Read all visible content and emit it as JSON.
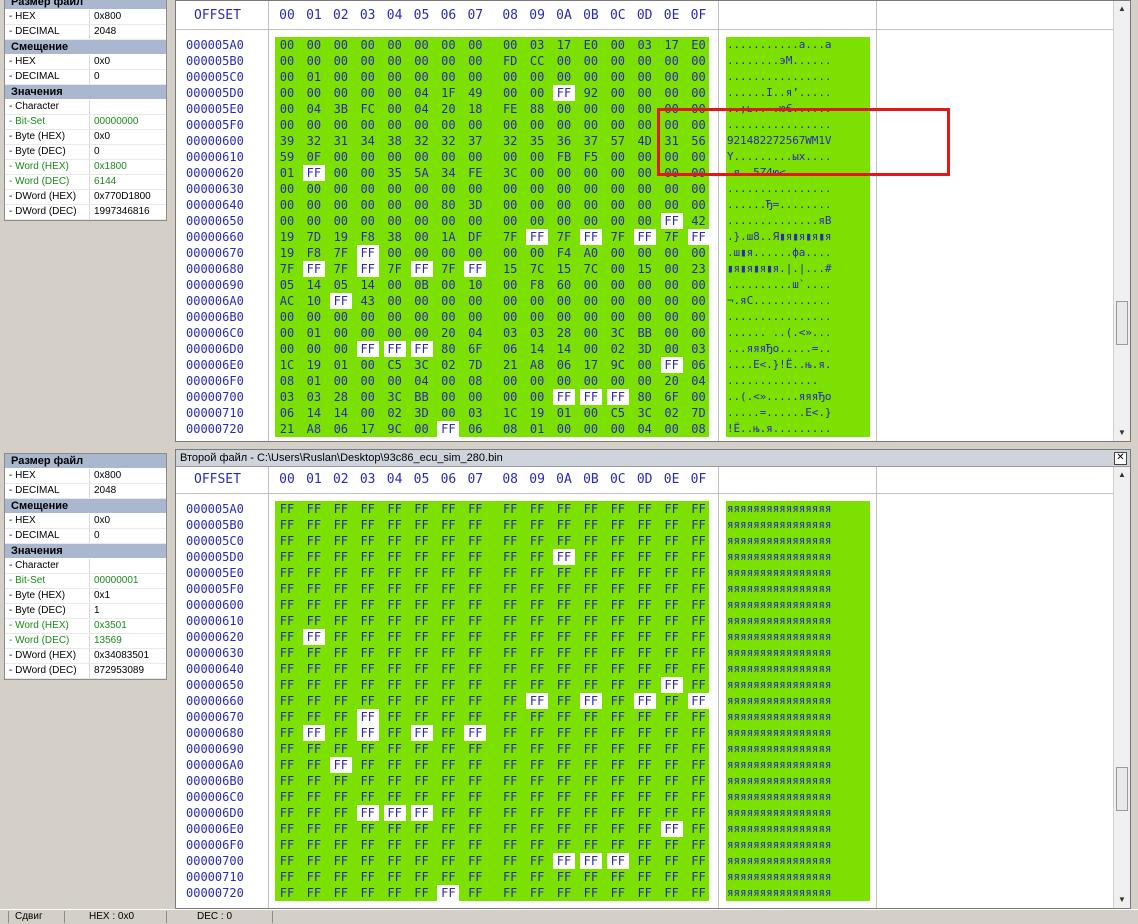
{
  "top_props": {
    "sections": [
      {
        "title": "Размер файл",
        "rows": [
          {
            "k": "- HEX",
            "v": "0x800"
          },
          {
            "k": "- DECIMAL",
            "v": "2048"
          }
        ]
      },
      {
        "title": "Смещение",
        "rows": [
          {
            "k": "- HEX",
            "v": "0x0"
          },
          {
            "k": "- DECIMAL",
            "v": "0"
          }
        ]
      },
      {
        "title": "Значения",
        "rows": [
          {
            "k": "- Character",
            "v": ""
          },
          {
            "k": "- Bit-Set",
            "v": "00000000",
            "g": true
          },
          {
            "k": "- Byte (HEX)",
            "v": "0x0"
          },
          {
            "k": "- Byte (DEC)",
            "v": "0"
          },
          {
            "k": "- Word (HEX)",
            "v": "0x1800",
            "g": true
          },
          {
            "k": "- Word (DEC)",
            "v": "6144",
            "g": true
          },
          {
            "k": "- DWord (HEX)",
            "v": "0x770D1800"
          },
          {
            "k": "- DWord (DEC)",
            "v": "1997346816"
          }
        ]
      }
    ]
  },
  "bottom_props": {
    "sections": [
      {
        "title": "Размер файл",
        "rows": [
          {
            "k": "- HEX",
            "v": "0x800"
          },
          {
            "k": "- DECIMAL",
            "v": "2048"
          }
        ]
      },
      {
        "title": "Смещение",
        "rows": [
          {
            "k": "- HEX",
            "v": "0x0"
          },
          {
            "k": "- DECIMAL",
            "v": "0"
          }
        ]
      },
      {
        "title": "Значения",
        "rows": [
          {
            "k": "- Character",
            "v": ""
          },
          {
            "k": "- Bit-Set",
            "v": "00000001",
            "g": true
          },
          {
            "k": "- Byte (HEX)",
            "v": "0x1"
          },
          {
            "k": "- Byte (DEC)",
            "v": "1"
          },
          {
            "k": "- Word (HEX)",
            "v": "0x3501",
            "g": true
          },
          {
            "k": "- Word (DEC)",
            "v": "13569",
            "g": true
          },
          {
            "k": "- DWord (HEX)",
            "v": "0x34083501"
          },
          {
            "k": "- DWord (DEC)",
            "v": "872953089"
          }
        ]
      }
    ]
  },
  "columns": [
    "00",
    "01",
    "02",
    "03",
    "04",
    "05",
    "06",
    "07",
    "08",
    "09",
    "0A",
    "0B",
    "0C",
    "0D",
    "0E",
    "0F"
  ],
  "offset_label": "OFFSET",
  "offsets": [
    "000005A0",
    "000005B0",
    "000005C0",
    "000005D0",
    "000005E0",
    "000005F0",
    "00000600",
    "00000610",
    "00000620",
    "00000630",
    "00000640",
    "00000650",
    "00000660",
    "00000670",
    "00000680",
    "00000690",
    "000006A0",
    "000006B0",
    "000006C0",
    "000006D0",
    "000006E0",
    "000006F0",
    "00000700",
    "00000710",
    "00000720"
  ],
  "top_pane": {
    "rows": [
      "00 00 00 00 00 00 00 00 00 03 17 E0 00 03 17 E0",
      "00 00 00 00 00 00 00 00 FD CC 00 00 00 00 00 00",
      "00 01 00 00 00 00 00 00 00 00 00 00 00 00 00 00",
      "00 00 00 00 00 04 1F 49 00 00 FF 92 00 00 00 00",
      "00 04 3B FC 00 04 20 18 FE 88 00 00 00 00 00 00",
      "00 00 00 00 00 00 00 00 00 00 00 00 00 00 00 00",
      "39 32 31 34 38 32 32 37 32 35 36 37 57 4D 31 56",
      "59 0F 00 00 00 00 00 00 00 00 FB F5 00 00 00 00",
      "01 FF 00 00 35 5A 34 FE 3C 00 00 00 00 00 00 00",
      "00 00 00 00 00 00 00 00 00 00 00 00 00 00 00 00",
      "00 00 00 00 00 00 80 3D 00 00 00 00 00 00 00 00",
      "00 00 00 00 00 00 00 00 00 00 00 00 00 00 FF 42",
      "19 7D 19 F8 38 00 1A DF 7F FF 7F FF 7F FF 7F FF",
      "19 F8 7F FF 00 00 00 00 00 00 F4 A0 00 00 00 00",
      "7F FF 7F FF 7F FF 7F FF 15 7C 15 7C 00 15 00 23",
      "05 14 05 14 00 0B 00 10 00 F8 60 00 00 00 00 00",
      "AC 10 FF 43 00 00 00 00 00 00 00 00 00 00 00 00",
      "00 00 00 00 00 00 00 00 00 00 00 00 00 00 00 00",
      "00 01 00 00 00 00 20 04 03 03 28 00 3C BB 00 00",
      "00 00 00 FF FF FF 80 6F 06 14 14 00 02 3D 00 03",
      "1C 19 01 00 C5 3C 02 7D 21 A8 06 17 9C 00 FF 06",
      "08 01 00 00 00 04 00 08 00 00 00 00 00 00 20 04",
      "03 03 28 00 3C BB 00 00 00 00 FF FF FF 80 6F 00",
      "06 14 14 00 02 3D 00 03 1C 19 01 00 C5 3C 02 7D",
      "21 A8 06 17 9C 00 FF 06 08 01 00 00 00 04 00 08"
    ],
    "ascii": [
      "...........а...а",
      "........эМ......",
      "................",
      "......I..я’.....",
      "..;ь.. .ю€......",
      "................",
      "921482272567WM1V",
      "Y.........ых....",
      ".я..5Z4ю<.......",
      "................",
      "......Ђ=........",
      "..............яB",
      ".}.ш8..Я▮я▮я▮я▮я",
      ".ш▮я......фа....",
      "▮я▮я▮я▮я.|.|...#",
      "..........ш`....",
      "¬.яC............",
      "................",
      "...... ..(.<»...",
      "...яяяЂо.....=..",
      "....Е<.}!Ё..њ.я.",
      "..............  ",
      "..(.<».....яяяЂо",
      ".....=......Е<.}",
      "!Ё..њ.я........."
    ]
  },
  "bottom_pane": {
    "title": "Второй файл - C:\\Users\\Ruslan\\Desktop\\93c86_ecu_sim_280.bin",
    "rows": [
      "FF FF FF FF FF FF FF FF FF FF FF FF FF FF FF FF",
      "FF FF FF FF FF FF FF FF FF FF FF FF FF FF FF FF",
      "FF FF FF FF FF FF FF FF FF FF FF FF FF FF FF FF",
      "FF FF FF FF FF FF FF FF FF FF FF FF FF FF FF FF",
      "FF FF FF FF FF FF FF FF FF FF FF FF FF FF FF FF",
      "FF FF FF FF FF FF FF FF FF FF FF FF FF FF FF FF",
      "FF FF FF FF FF FF FF FF FF FF FF FF FF FF FF FF",
      "FF FF FF FF FF FF FF FF FF FF FF FF FF FF FF FF",
      "FF FF FF FF FF FF FF FF FF FF FF FF FF FF FF FF",
      "FF FF FF FF FF FF FF FF FF FF FF FF FF FF FF FF",
      "FF FF FF FF FF FF FF FF FF FF FF FF FF FF FF FF",
      "FF FF FF FF FF FF FF FF FF FF FF FF FF FF FF FF",
      "FF FF FF FF FF FF FF FF FF FF FF FF FF FF FF FF",
      "FF FF FF FF FF FF FF FF FF FF FF FF FF FF FF FF",
      "FF FF FF FF FF FF FF FF FF FF FF FF FF FF FF FF",
      "FF FF FF FF FF FF FF FF FF FF FF FF FF FF FF FF",
      "FF FF FF FF FF FF FF FF FF FF FF FF FF FF FF FF",
      "FF FF FF FF FF FF FF FF FF FF FF FF FF FF FF FF",
      "FF FF FF FF FF FF FF FF FF FF FF FF FF FF FF FF",
      "FF FF FF FF FF FF FF FF FF FF FF FF FF FF FF FF",
      "FF FF FF FF FF FF FF FF FF FF FF FF FF FF FF FF",
      "FF FF FF FF FF FF FF FF FF FF FF FF FF FF FF FF",
      "FF FF FF FF FF FF FF FF FF FF FF FF FF FF FF FF",
      "FF FF FF FF FF FF FF FF FF FF FF FF FF FF FF FF",
      "FF FF FF FF FF FF FF FF FF FF FF FF FF FF FF FF"
    ],
    "ascii": [
      "яяяяяяяяяяяяяяяя",
      "яяяяяяяяяяяяяяяя",
      "яяяяяяяяяяяяяяяя",
      "яяяяяяяяяяяяяяяя",
      "яяяяяяяяяяяяяяяя",
      "яяяяяяяяяяяяяяяя",
      "яяяяяяяяяяяяяяяя",
      "яяяяяяяяяяяяяяяя",
      "яяяяяяяяяяяяяяяя",
      "яяяяяяяяяяяяяяяя",
      "яяяяяяяяяяяяяяяя",
      "яяяяяяяяяяяяяяяя",
      "яяяяяяяяяяяяяяяя",
      "яяяяяяяяяяяяяяяя",
      "яяяяяяяяяяяяяяяя",
      "яяяяяяяяяяяяяяяя",
      "яяяяяяяяяяяяяяяя",
      "яяяяяяяяяяяяяяяя",
      "яяяяяяяяяяяяяяяя",
      "яяяяяяяяяяяяяяяя",
      "яяяяяяяяяяяяяяяя",
      "яяяяяяяяяяяяяяяя",
      "яяяяяяяяяяяяяяяя",
      "яяяяяяяяяяяяяяяя",
      "яяяяяяяяяяяяяяяя"
    ]
  },
  "highlight_cells": [
    [
      3,
      10
    ],
    [
      8,
      1
    ],
    [
      11,
      14
    ],
    [
      12,
      9
    ],
    [
      12,
      11
    ],
    [
      12,
      13
    ],
    [
      12,
      15
    ],
    [
      13,
      3
    ],
    [
      14,
      1
    ],
    [
      14,
      3
    ],
    [
      14,
      5
    ],
    [
      14,
      7
    ],
    [
      16,
      2
    ],
    [
      19,
      3
    ],
    [
      19,
      4
    ],
    [
      19,
      5
    ],
    [
      20,
      14
    ],
    [
      22,
      10
    ],
    [
      22,
      11
    ],
    [
      22,
      12
    ],
    [
      24,
      6
    ]
  ],
  "statusbar": {
    "shift": "Сдвиг",
    "hex": "HEX : 0x0",
    "dec": "DEC : 0"
  },
  "colors": {
    "diff_fill": "#7ce000",
    "highlight": "#ffffff",
    "annotation": "#e01818"
  }
}
